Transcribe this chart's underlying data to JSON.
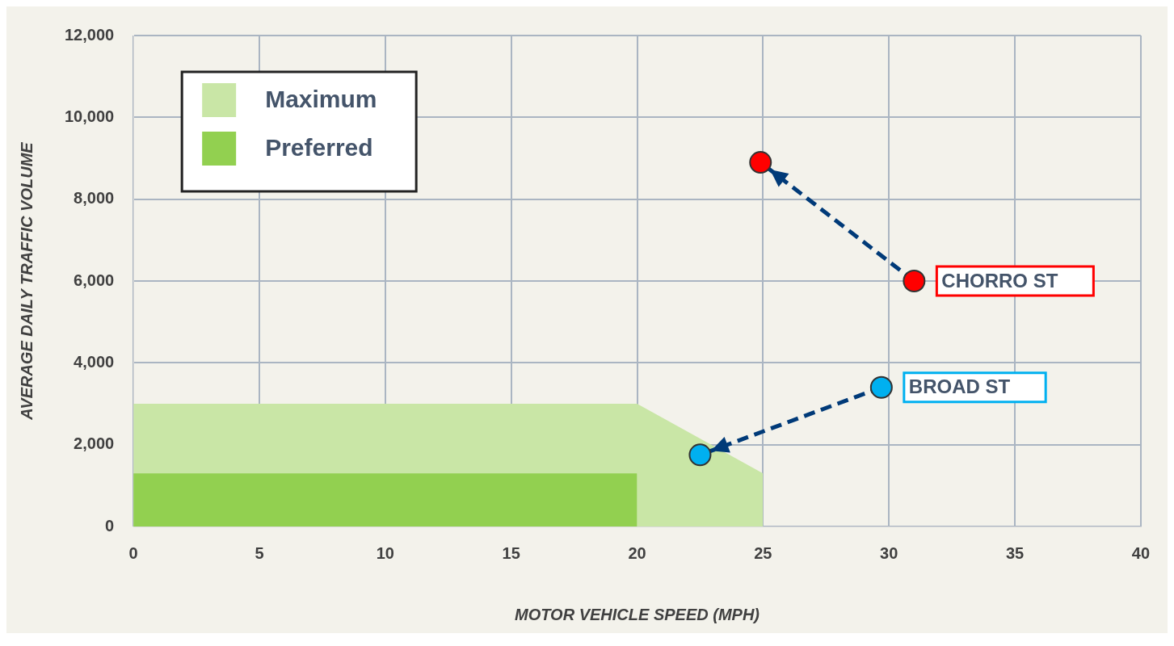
{
  "chart_data": {
    "type": "scatter",
    "xlabel": "MOTOR VEHICLE SPEED (MPH)",
    "ylabel": "AVERAGE DAILY TRAFFIC VOLUME",
    "xlim": [
      0,
      40
    ],
    "xticks": [
      0,
      5,
      10,
      15,
      20,
      25,
      30,
      35,
      40
    ],
    "ylim": [
      0,
      12000
    ],
    "yticks": [
      0,
      {
        "value": 2000,
        "label": "2,000"
      },
      {
        "value": 4000,
        "label": "4,000"
      },
      {
        "value": 6000,
        "label": "6,000"
      },
      {
        "value": 8000,
        "label": "8,000"
      },
      {
        "value": 10000,
        "label": "10,000"
      },
      {
        "value": 12000,
        "label": "12,000"
      }
    ],
    "grid": true,
    "legend": "top left",
    "series": [
      {
        "name": "Maximum",
        "type": "area",
        "color": "#c9e6a6",
        "x": [
          0,
          20,
          25,
          25
        ],
        "values": [
          3000,
          3000,
          1300,
          0
        ],
        "marker": "none"
      },
      {
        "name": "Preferred",
        "type": "area",
        "color": "#92d050",
        "x": [
          0,
          20,
          20
        ],
        "values": [
          1300,
          1300,
          0
        ],
        "marker": "none"
      },
      {
        "type": "line",
        "color": "#003a78",
        "x": [
          31,
          24.9
        ],
        "values": [
          6000,
          8900
        ],
        "line_style": "dashed",
        "marker": "none"
      },
      {
        "type": "line",
        "color": "#003a78",
        "x": [
          29.7,
          22.5
        ],
        "values": [
          3400,
          1750
        ],
        "line_style": "dashed",
        "marker": "none"
      },
      {
        "type": "scatter",
        "color": "#ff0000",
        "x": [
          24.9,
          31
        ],
        "values": [
          8900,
          6000
        ],
        "marker": "circle"
      },
      {
        "type": "scatter",
        "color": "#00b0f0",
        "x": [
          22.5,
          29.7
        ],
        "values": [
          1750,
          3400
        ],
        "marker": "circle"
      }
    ],
    "annotations": [
      {
        "text": "CHORRO ST",
        "x": 31,
        "y": 6000
      },
      {
        "text": "BROAD ST",
        "x": 29.7,
        "y": 3400
      }
    ]
  }
}
